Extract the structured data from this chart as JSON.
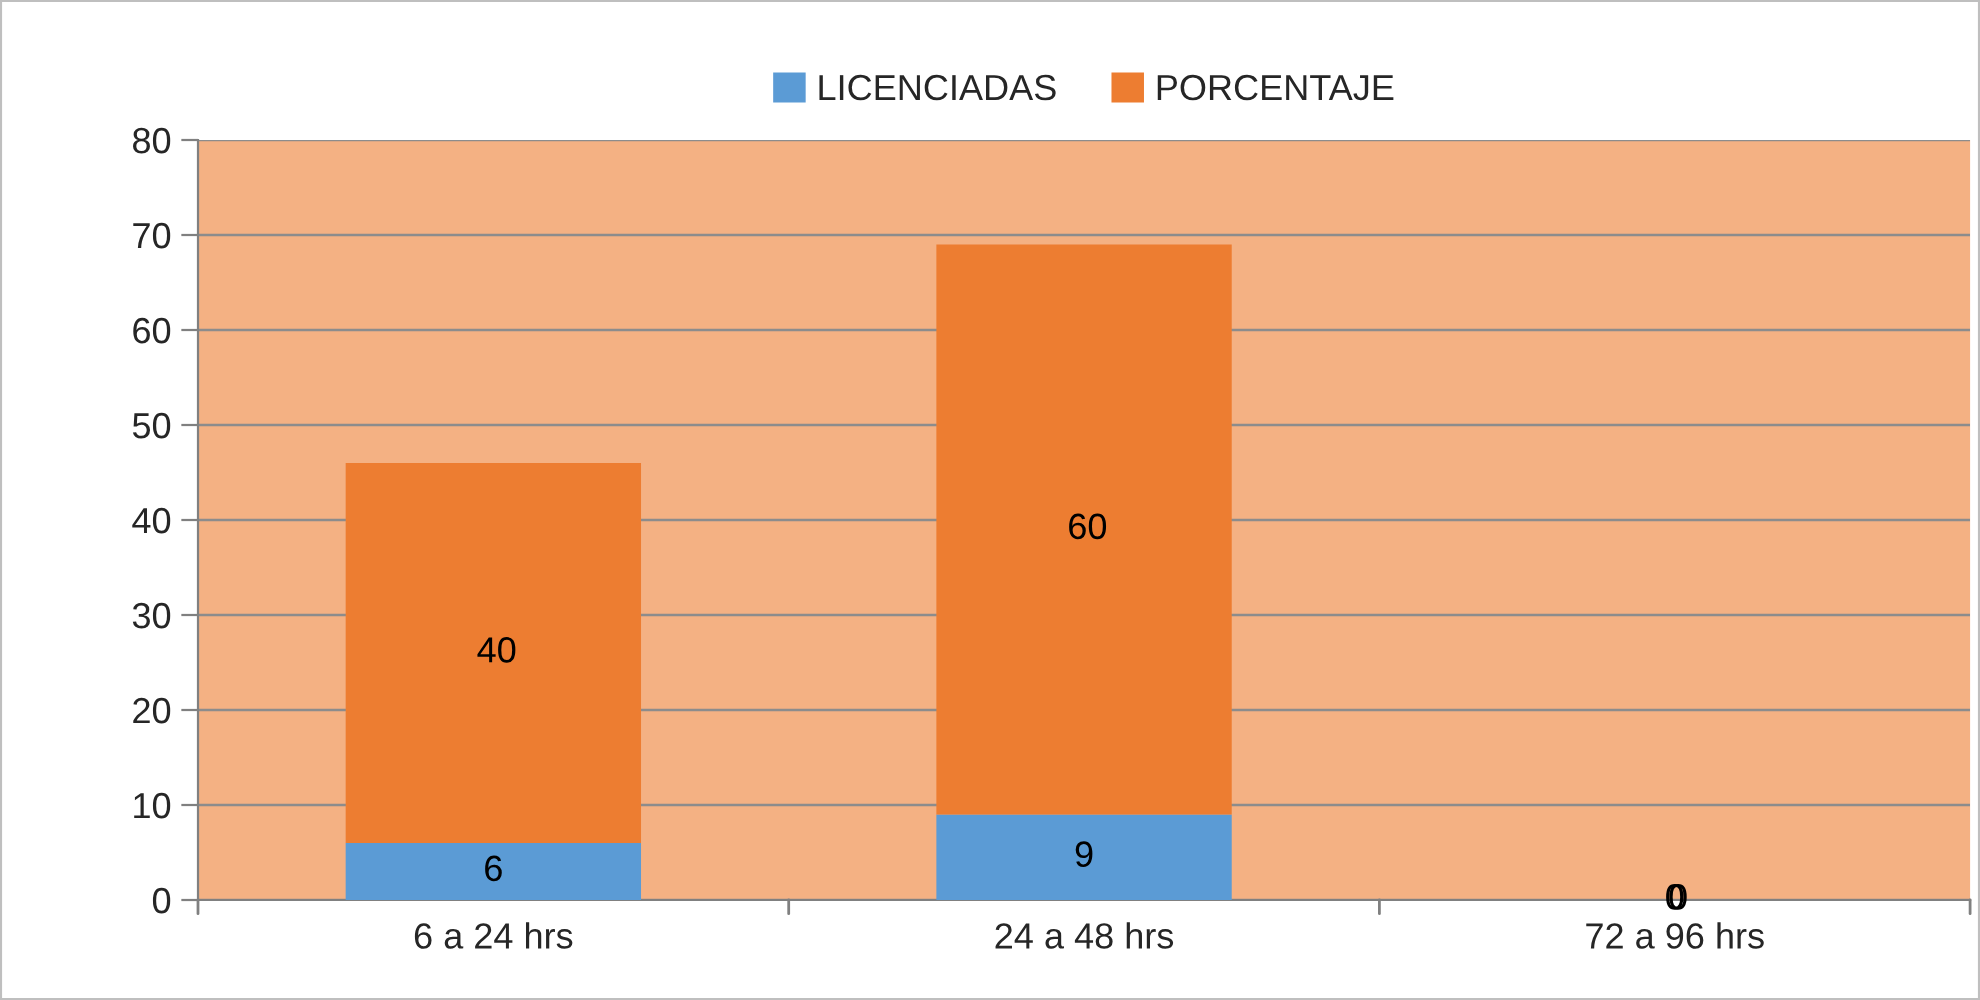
{
  "chart_data": {
    "type": "bar",
    "stacked": true,
    "categories": [
      "6 a 24 hrs",
      "24 a 48 hrs",
      "72 a 96 hrs"
    ],
    "series": [
      {
        "name": "LICENCIADAS",
        "color": "#5b9bd5",
        "values": [
          6,
          9,
          0
        ]
      },
      {
        "name": "PORCENTAJE",
        "color": "#ed7d31",
        "values": [
          40,
          60,
          0
        ]
      }
    ],
    "ylim": [
      0,
      80
    ],
    "yticks": [
      0,
      10,
      20,
      30,
      40,
      50,
      60,
      70,
      80
    ],
    "grid": "y",
    "legend": "top",
    "data_labels": true
  }
}
